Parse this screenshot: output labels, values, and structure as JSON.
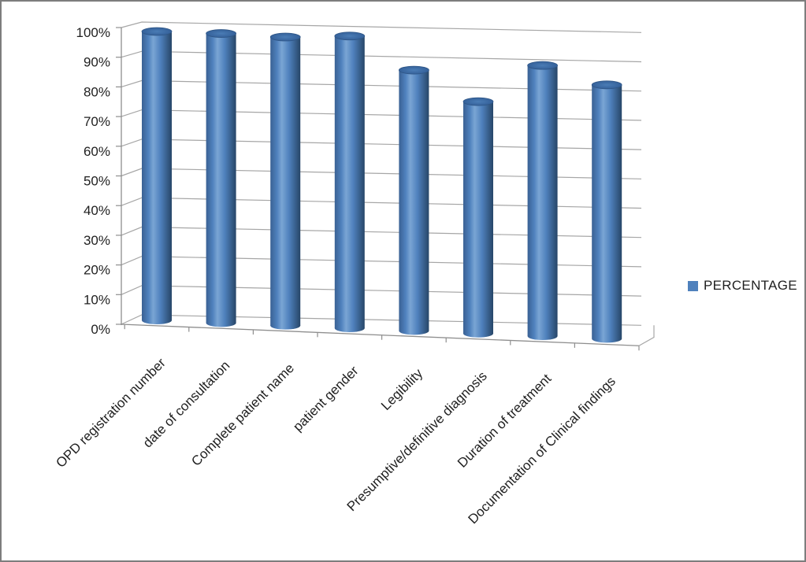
{
  "chart_data": {
    "type": "bar",
    "subtype": "3d-cylinder",
    "title": "",
    "xlabel": "",
    "ylabel": "",
    "categories": [
      "OPD registration number",
      "date of consultation",
      "Complete patient name",
      "patient gender",
      "Legibility",
      "Presumptive/definitive diagnosis",
      "Duration of treatment",
      "Documentation of Clinical findings"
    ],
    "series": [
      {
        "name": "PERCENTAGE",
        "values": [
          100,
          99.5,
          98.5,
          99,
          88,
          78,
          90,
          84
        ]
      }
    ],
    "ylim": [
      0,
      100
    ],
    "ytick_step": 10,
    "ytick_labels": [
      "0%",
      "10%",
      "20%",
      "30%",
      "40%",
      "50%",
      "60%",
      "70%",
      "80%",
      "90%",
      "100%"
    ],
    "grid": true,
    "legend_position": "right",
    "colors": {
      "bar_mid": "#4f81bd",
      "bar_light": "#7aa5d4",
      "bar_dark_left": "#3a6194",
      "bar_dark_right": "#274668",
      "bar_top_center": "#4a7cb5",
      "bar_top_edge": "#35619a",
      "bar_outline": "#2f5686",
      "gridline": "#a6a6a6",
      "axis": "#8e8e8e",
      "text": "#1f1f1f",
      "background": "#ffffff",
      "frame_border": "#7d7d7d"
    }
  }
}
